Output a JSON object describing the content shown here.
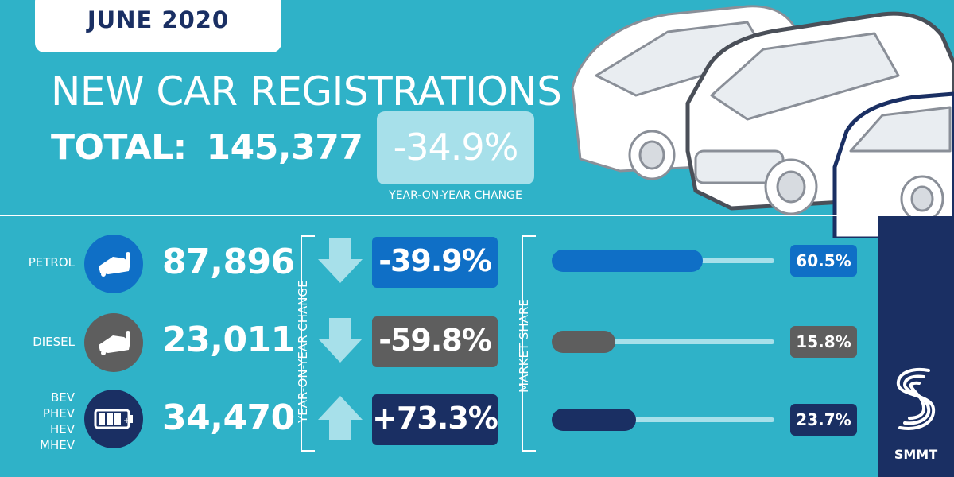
{
  "header": {
    "date": "JUNE 2020",
    "title": "NEW CAR REGISTRATIONS",
    "total_label": "TOTAL:",
    "total_value": "145,377",
    "total_change": "-34.9%",
    "total_change_caption": "YEAR-ON-YEAR CHANGE"
  },
  "axis_labels": {
    "yoy": "YEAR-ON-YEAR CHANGE",
    "share": "MARKET SHARE"
  },
  "rows": [
    {
      "label": "PETROL",
      "value": "87,896",
      "change": "-39.9%",
      "direction": "down",
      "share": "60.5%",
      "share_fraction": 0.605,
      "color": "#0f6fc6",
      "icon": "fuel-pump-icon"
    },
    {
      "label": "DIESEL",
      "value": "23,011",
      "change": "-59.8%",
      "direction": "down",
      "share": "15.8%",
      "share_fraction": 0.158,
      "color": "#5e5e5e",
      "icon": "fuel-pump-icon"
    },
    {
      "label": "BEV\nPHEV\nHEV\nMHEV",
      "value": "34,470",
      "change": "+73.3%",
      "direction": "up",
      "share": "23.7%",
      "share_fraction": 0.237,
      "color": "#1a2f63",
      "icon": "battery-icon"
    }
  ],
  "brand": {
    "name": "SMMT",
    "navy": "#1a2f63",
    "background": "#2fb2c8"
  }
}
